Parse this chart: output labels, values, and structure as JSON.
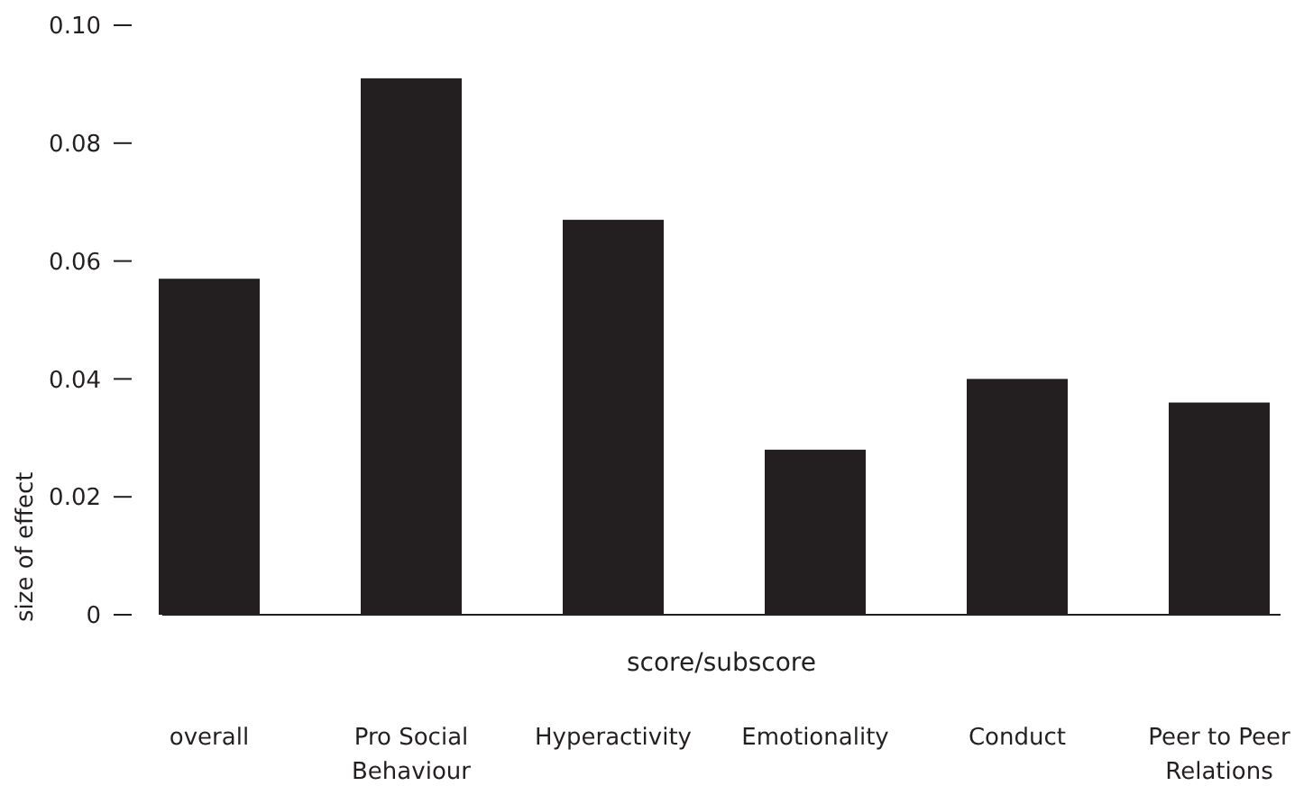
{
  "chart_data": {
    "type": "bar",
    "xlabel": "score/subscore",
    "ylabel": "size of effect",
    "categories": [
      "overall",
      "Pro Social Behaviour",
      "Hyperactivity",
      "Emotionality",
      "Conduct",
      "Peer to Peer Relations"
    ],
    "values": [
      0.057,
      0.091,
      0.067,
      0.028,
      0.04,
      0.036
    ],
    "color": "#231f20",
    "ylim": [
      0,
      0.1
    ],
    "yticks": [
      {
        "value": 0,
        "label": "0"
      },
      {
        "value": 0.02,
        "label": "0.02"
      },
      {
        "value": 0.04,
        "label": "0.04"
      },
      {
        "value": 0.06,
        "label": "0.06"
      },
      {
        "value": 0.08,
        "label": "0.08"
      },
      {
        "value": 0.1,
        "label": "0.10"
      }
    ],
    "grid": false
  }
}
